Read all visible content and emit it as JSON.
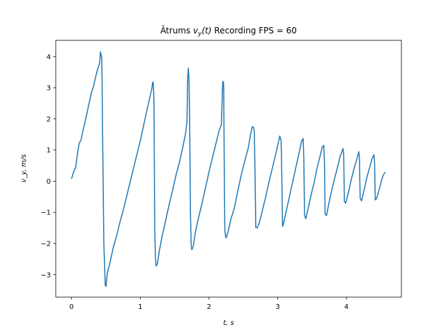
{
  "chart_data": {
    "type": "line",
    "title": "Ātrums v_y(t) Recording FPS = 60",
    "title_parts": {
      "prefix": "Ātrums ",
      "v": "v",
      "sub": "y",
      "arg": "(t)",
      "suffix": " Recording FPS = 60"
    },
    "xlabel": "t, s",
    "ylabel": "v_y, m/s",
    "xlim": [
      -0.23,
      4.8
    ],
    "ylim": [
      -3.72,
      4.52
    ],
    "xticks": [
      0,
      1,
      2,
      3,
      4
    ],
    "yticks": [
      -3,
      -2,
      -1,
      0,
      1,
      2,
      3,
      4
    ],
    "grid": false,
    "line_color": "#1f77b4",
    "series": [
      {
        "points": [
          [
            0.0,
            0.08
          ],
          [
            0.03,
            0.3
          ],
          [
            0.06,
            0.45
          ],
          [
            0.09,
            0.95
          ],
          [
            0.11,
            1.2
          ],
          [
            0.14,
            1.35
          ],
          [
            0.17,
            1.65
          ],
          [
            0.2,
            1.95
          ],
          [
            0.23,
            2.25
          ],
          [
            0.26,
            2.55
          ],
          [
            0.29,
            2.85
          ],
          [
            0.32,
            3.05
          ],
          [
            0.35,
            3.35
          ],
          [
            0.38,
            3.6
          ],
          [
            0.41,
            3.8
          ],
          [
            0.42,
            4.15
          ],
          [
            0.44,
            3.95
          ],
          [
            0.45,
            1.8
          ],
          [
            0.47,
            -2.0
          ],
          [
            0.49,
            -3.33
          ],
          [
            0.5,
            -3.38
          ],
          [
            0.52,
            -2.95
          ],
          [
            0.55,
            -2.7
          ],
          [
            0.58,
            -2.4
          ],
          [
            0.61,
            -2.1
          ],
          [
            0.65,
            -1.8
          ],
          [
            0.7,
            -1.35
          ],
          [
            0.75,
            -0.95
          ],
          [
            0.8,
            -0.5
          ],
          [
            0.85,
            -0.05
          ],
          [
            0.9,
            0.4
          ],
          [
            0.95,
            0.85
          ],
          [
            1.0,
            1.3
          ],
          [
            1.05,
            1.8
          ],
          [
            1.1,
            2.3
          ],
          [
            1.14,
            2.7
          ],
          [
            1.17,
            3.0
          ],
          [
            1.18,
            3.18
          ],
          [
            1.19,
            3.15
          ],
          [
            1.2,
            2.5
          ],
          [
            1.21,
            -1.5
          ],
          [
            1.22,
            -2.45
          ],
          [
            1.23,
            -2.72
          ],
          [
            1.25,
            -2.65
          ],
          [
            1.28,
            -2.2
          ],
          [
            1.32,
            -1.75
          ],
          [
            1.37,
            -1.25
          ],
          [
            1.42,
            -0.75
          ],
          [
            1.47,
            -0.3
          ],
          [
            1.52,
            0.2
          ],
          [
            1.57,
            0.6
          ],
          [
            1.62,
            1.1
          ],
          [
            1.66,
            1.55
          ],
          [
            1.68,
            1.9
          ],
          [
            1.69,
            3.3
          ],
          [
            1.7,
            3.63
          ],
          [
            1.71,
            3.2
          ],
          [
            1.72,
            1.6
          ],
          [
            1.73,
            -1.0
          ],
          [
            1.74,
            -2.05
          ],
          [
            1.75,
            -2.2
          ],
          [
            1.77,
            -2.1
          ],
          [
            1.8,
            -1.65
          ],
          [
            1.85,
            -1.15
          ],
          [
            1.9,
            -0.7
          ],
          [
            1.95,
            -0.2
          ],
          [
            2.0,
            0.3
          ],
          [
            2.05,
            0.75
          ],
          [
            2.1,
            1.2
          ],
          [
            2.15,
            1.65
          ],
          [
            2.18,
            1.8
          ],
          [
            2.19,
            2.5
          ],
          [
            2.2,
            3.18
          ],
          [
            2.21,
            3.2
          ],
          [
            2.215,
            2.9
          ],
          [
            2.22,
            1.0
          ],
          [
            2.23,
            -1.55
          ],
          [
            2.24,
            -1.78
          ],
          [
            2.25,
            -1.82
          ],
          [
            2.28,
            -1.6
          ],
          [
            2.32,
            -1.2
          ],
          [
            2.37,
            -0.85
          ],
          [
            2.42,
            -0.3
          ],
          [
            2.47,
            0.2
          ],
          [
            2.52,
            0.65
          ],
          [
            2.57,
            1.05
          ],
          [
            2.6,
            1.45
          ],
          [
            2.63,
            1.75
          ],
          [
            2.65,
            1.72
          ],
          [
            2.66,
            1.58
          ],
          [
            2.67,
            0.2
          ],
          [
            2.68,
            -1.48
          ],
          [
            2.7,
            -1.5
          ],
          [
            2.73,
            -1.35
          ],
          [
            2.77,
            -1.0
          ],
          [
            2.82,
            -0.55
          ],
          [
            2.87,
            -0.05
          ],
          [
            2.92,
            0.4
          ],
          [
            2.97,
            0.85
          ],
          [
            3.0,
            1.15
          ],
          [
            3.03,
            1.45
          ],
          [
            3.05,
            1.3
          ],
          [
            3.06,
            0.2
          ],
          [
            3.07,
            -1.45
          ],
          [
            3.08,
            -1.4
          ],
          [
            3.12,
            -1.0
          ],
          [
            3.16,
            -0.6
          ],
          [
            3.2,
            -0.2
          ],
          [
            3.24,
            0.2
          ],
          [
            3.28,
            0.6
          ],
          [
            3.32,
            1.0
          ],
          [
            3.35,
            1.3
          ],
          [
            3.37,
            1.37
          ],
          [
            3.38,
            0.7
          ],
          [
            3.39,
            -1.1
          ],
          [
            3.41,
            -1.2
          ],
          [
            3.45,
            -0.8
          ],
          [
            3.49,
            -0.4
          ],
          [
            3.53,
            -0.05
          ],
          [
            3.57,
            0.4
          ],
          [
            3.61,
            0.75
          ],
          [
            3.65,
            1.1
          ],
          [
            3.67,
            1.15
          ],
          [
            3.68,
            0.6
          ],
          [
            3.69,
            -1.05
          ],
          [
            3.71,
            -1.1
          ],
          [
            3.75,
            -0.65
          ],
          [
            3.79,
            -0.25
          ],
          [
            3.83,
            0.1
          ],
          [
            3.87,
            0.45
          ],
          [
            3.91,
            0.8
          ],
          [
            3.95,
            1.05
          ],
          [
            3.96,
            0.85
          ],
          [
            3.97,
            -0.65
          ],
          [
            3.99,
            -0.7
          ],
          [
            4.03,
            -0.35
          ],
          [
            4.07,
            0.05
          ],
          [
            4.11,
            0.4
          ],
          [
            4.15,
            0.7
          ],
          [
            4.18,
            0.95
          ],
          [
            4.19,
            0.7
          ],
          [
            4.2,
            -0.55
          ],
          [
            4.22,
            -0.63
          ],
          [
            4.26,
            -0.25
          ],
          [
            4.3,
            0.15
          ],
          [
            4.34,
            0.45
          ],
          [
            4.37,
            0.7
          ],
          [
            4.4,
            0.85
          ],
          [
            4.41,
            0.6
          ],
          [
            4.42,
            -0.6
          ],
          [
            4.44,
            -0.55
          ],
          [
            4.48,
            -0.25
          ],
          [
            4.52,
            0.1
          ],
          [
            4.55,
            0.25
          ],
          [
            4.57,
            0.28
          ]
        ]
      }
    ]
  }
}
